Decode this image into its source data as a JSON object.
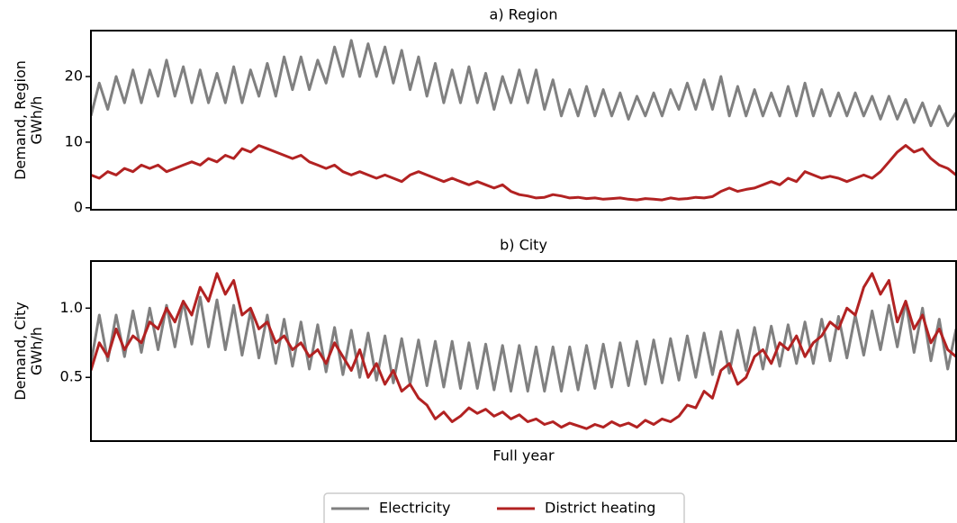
{
  "chart_data": [
    {
      "type": "line",
      "title": "a) Region",
      "ylabel": [
        "Demand, Region",
        "GWh/h"
      ],
      "ylim": [
        -0.3,
        27
      ],
      "yticks": [
        0,
        10,
        20
      ],
      "series": [
        {
          "name": "Electricity",
          "color": "#808080",
          "values": [
            14,
            19,
            15,
            20,
            16,
            21,
            16,
            21,
            17,
            22.5,
            17,
            21.5,
            16,
            21,
            16,
            20.5,
            16,
            21.5,
            16,
            21,
            17,
            22,
            17,
            23,
            18,
            23,
            18,
            22.5,
            19,
            24.5,
            20,
            25.5,
            20,
            25,
            20,
            24.5,
            19,
            24,
            18,
            23,
            17,
            22,
            16,
            21,
            16,
            21.5,
            16,
            20.5,
            15,
            20,
            16,
            21,
            16,
            21,
            15,
            19.5,
            14,
            18,
            14,
            18.5,
            14,
            18,
            14,
            17.5,
            13.5,
            17,
            14,
            17.5,
            14,
            18,
            15,
            19,
            15,
            19.5,
            15,
            20,
            14,
            18.5,
            14,
            18,
            14,
            17.5,
            14,
            18.5,
            14,
            19,
            14,
            18,
            14,
            17.5,
            14,
            17.5,
            14,
            17,
            13.5,
            17,
            13.5,
            16.5,
            13,
            16,
            12.5,
            15.5,
            12.5,
            14.5
          ]
        },
        {
          "name": "District heating",
          "color": "#b22222",
          "values": [
            5,
            4.5,
            5.5,
            5,
            6,
            5.5,
            6.5,
            6,
            6.5,
            5.5,
            6,
            6.5,
            7,
            6.5,
            7.5,
            7,
            8,
            7.5,
            9,
            8.5,
            9.5,
            9,
            8.5,
            8,
            7.5,
            8,
            7,
            6.5,
            6,
            6.5,
            5.5,
            5,
            5.5,
            5,
            4.5,
            5,
            4.5,
            4,
            5,
            5.5,
            5,
            4.5,
            4,
            4.5,
            4,
            3.5,
            4,
            3.5,
            3,
            3.5,
            2.5,
            2,
            1.8,
            1.5,
            1.6,
            2,
            1.8,
            1.5,
            1.6,
            1.4,
            1.5,
            1.3,
            1.4,
            1.5,
            1.3,
            1.2,
            1.4,
            1.3,
            1.2,
            1.5,
            1.3,
            1.4,
            1.6,
            1.5,
            1.7,
            2.5,
            3,
            2.5,
            2.8,
            3,
            3.5,
            4,
            3.5,
            4.5,
            4,
            5.5,
            5,
            4.5,
            4.8,
            4.5,
            4,
            4.5,
            5,
            4.5,
            5.5,
            7,
            8.5,
            9.5,
            8.5,
            9,
            7.5,
            6.5,
            6,
            5
          ]
        }
      ]
    },
    {
      "type": "line",
      "title": "b) City",
      "ylabel": [
        "Demand, City",
        "GWh/h"
      ],
      "xlabel": "Full year",
      "ylim": [
        0.04,
        1.34
      ],
      "yticks": [
        0.5,
        {
          "value": 1,
          "label": "1.0"
        }
      ],
      "series": [
        {
          "name": "Electricity",
          "color": "#808080",
          "values": [
            0.6,
            0.95,
            0.62,
            0.95,
            0.65,
            0.98,
            0.68,
            1.0,
            0.7,
            1.02,
            0.72,
            1.05,
            0.74,
            1.08,
            0.72,
            1.06,
            0.7,
            1.02,
            0.66,
            0.98,
            0.64,
            0.95,
            0.6,
            0.92,
            0.58,
            0.9,
            0.56,
            0.88,
            0.54,
            0.86,
            0.52,
            0.84,
            0.5,
            0.82,
            0.48,
            0.8,
            0.46,
            0.78,
            0.45,
            0.77,
            0.44,
            0.76,
            0.43,
            0.76,
            0.42,
            0.75,
            0.42,
            0.74,
            0.41,
            0.73,
            0.4,
            0.73,
            0.4,
            0.72,
            0.4,
            0.72,
            0.4,
            0.72,
            0.41,
            0.73,
            0.42,
            0.74,
            0.43,
            0.75,
            0.44,
            0.76,
            0.45,
            0.77,
            0.46,
            0.78,
            0.48,
            0.8,
            0.5,
            0.82,
            0.52,
            0.83,
            0.53,
            0.84,
            0.55,
            0.86,
            0.56,
            0.87,
            0.58,
            0.88,
            0.6,
            0.9,
            0.6,
            0.92,
            0.62,
            0.94,
            0.64,
            0.95,
            0.66,
            0.98,
            0.7,
            1.02,
            0.72,
            1.05,
            0.68,
            1.0,
            0.62,
            0.92,
            0.56,
            0.85
          ]
        },
        {
          "name": "District heating",
          "color": "#b22222",
          "values": [
            0.55,
            0.75,
            0.65,
            0.85,
            0.7,
            0.8,
            0.75,
            0.9,
            0.85,
            1.0,
            0.9,
            1.05,
            0.95,
            1.15,
            1.05,
            1.25,
            1.1,
            1.2,
            0.95,
            1.0,
            0.85,
            0.9,
            0.75,
            0.8,
            0.7,
            0.75,
            0.65,
            0.7,
            0.6,
            0.75,
            0.65,
            0.55,
            0.7,
            0.5,
            0.6,
            0.45,
            0.55,
            0.4,
            0.45,
            0.35,
            0.3,
            0.2,
            0.25,
            0.18,
            0.22,
            0.28,
            0.24,
            0.27,
            0.22,
            0.25,
            0.2,
            0.23,
            0.18,
            0.2,
            0.16,
            0.18,
            0.14,
            0.17,
            0.15,
            0.13,
            0.16,
            0.14,
            0.18,
            0.15,
            0.17,
            0.14,
            0.19,
            0.16,
            0.2,
            0.18,
            0.22,
            0.3,
            0.28,
            0.4,
            0.35,
            0.55,
            0.6,
            0.45,
            0.5,
            0.65,
            0.7,
            0.6,
            0.75,
            0.7,
            0.8,
            0.65,
            0.75,
            0.8,
            0.9,
            0.85,
            1.0,
            0.95,
            1.15,
            1.25,
            1.1,
            1.2,
            0.9,
            1.05,
            0.85,
            0.95,
            0.75,
            0.85,
            0.7,
            0.65
          ]
        }
      ]
    }
  ]
}
